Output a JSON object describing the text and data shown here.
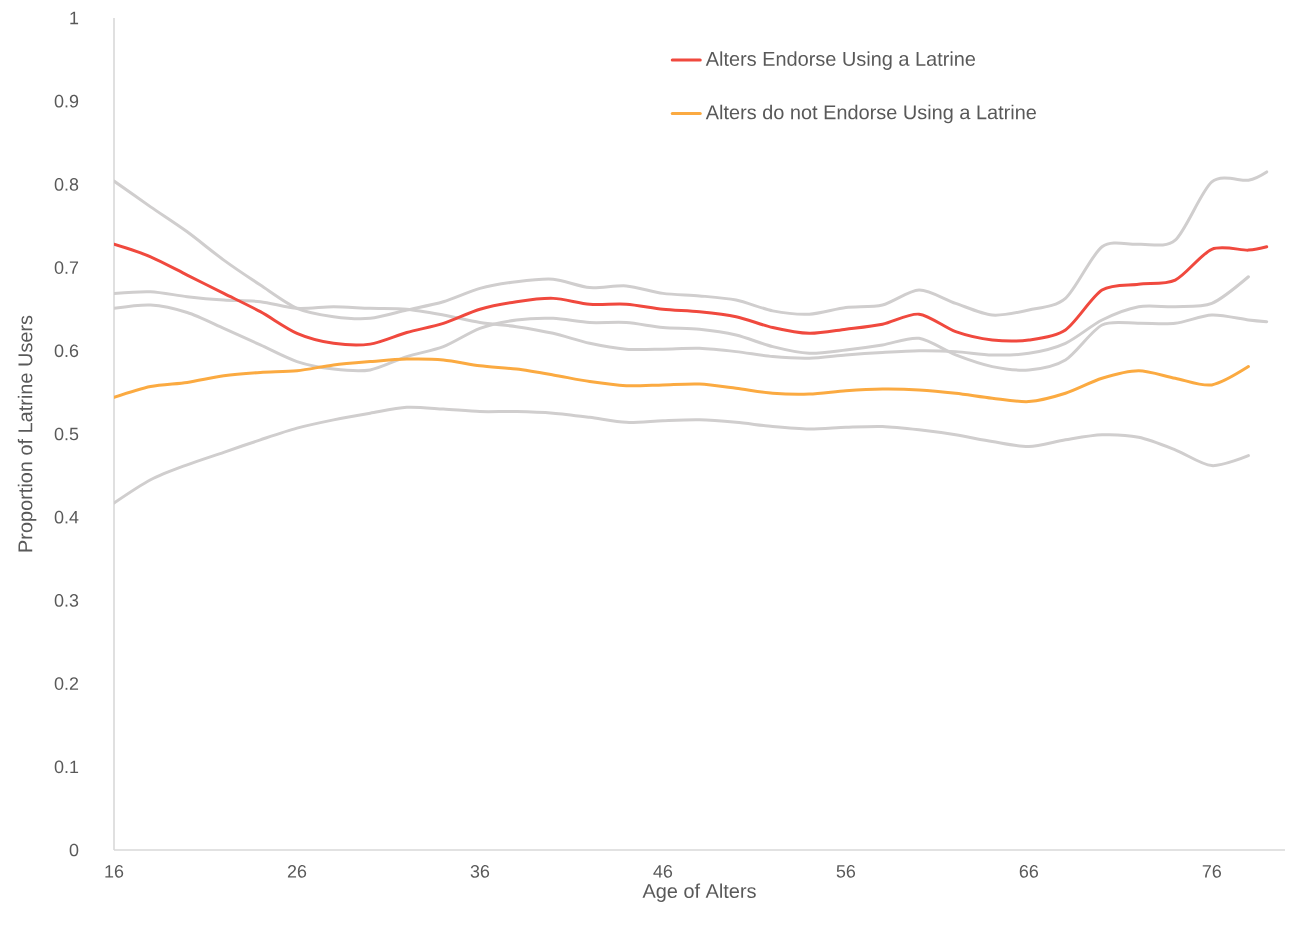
{
  "chart_data": {
    "type": "line",
    "xlabel": "Age of Alters",
    "ylabel": "Proportion of Latrine Users",
    "xlim": [
      16,
      80
    ],
    "xticks": [
      16,
      26,
      36,
      46,
      56,
      66,
      76
    ],
    "ylim": [
      0,
      1
    ],
    "yticks": [
      0,
      {
        "value": 0.1,
        "label": "0.1"
      },
      {
        "value": 0.2,
        "label": "0.2"
      },
      {
        "value": 0.3,
        "label": "0.3"
      },
      {
        "value": 0.4,
        "label": "0.4"
      },
      {
        "value": 0.5,
        "label": "0.5"
      },
      {
        "value": 0.6,
        "label": "0.6"
      },
      {
        "value": 0.7,
        "label": "0.7"
      },
      {
        "value": 0.8,
        "label": "0.8"
      },
      {
        "value": 0.9,
        "label": "0.9"
      },
      1
    ],
    "grid": false,
    "legend": "top right",
    "marker": "none",
    "line_style": "solid",
    "series": [
      {
        "color": "#d0cece",
        "x": [
          16,
          18,
          20,
          22,
          24,
          26,
          28,
          30,
          32,
          34,
          36,
          38,
          40,
          42,
          44,
          46,
          48,
          50,
          52,
          54,
          56,
          58,
          60,
          62,
          64,
          66,
          68,
          70,
          72,
          74,
          76,
          78,
          79
        ],
        "values": [
          0.804,
          0.773,
          0.743,
          0.709,
          0.679,
          0.651,
          0.641,
          0.639,
          0.649,
          0.659,
          0.675,
          0.683,
          0.686,
          0.676,
          0.678,
          0.669,
          0.666,
          0.661,
          0.648,
          0.644,
          0.652,
          0.655,
          0.673,
          0.657,
          0.643,
          0.649,
          0.663,
          0.725,
          0.728,
          0.733,
          0.803,
          0.805,
          0.815
        ]
      },
      {
        "color": "#d0cece",
        "x": [
          16,
          18,
          20,
          22,
          24,
          26,
          28,
          30,
          32,
          34,
          36,
          38,
          40,
          42,
          44,
          46,
          48,
          50,
          52,
          54,
          56,
          58,
          60,
          62,
          64,
          66,
          68,
          70,
          72,
          74,
          76,
          78,
          79
        ],
        "values": [
          0.651,
          0.655,
          0.646,
          0.627,
          0.607,
          0.587,
          0.578,
          0.577,
          0.593,
          0.605,
          0.627,
          0.637,
          0.639,
          0.634,
          0.634,
          0.628,
          0.626,
          0.619,
          0.605,
          0.597,
          0.601,
          0.607,
          0.615,
          0.595,
          0.581,
          0.577,
          0.589,
          0.631,
          0.633,
          0.633,
          0.643,
          0.637,
          0.635
        ]
      },
      {
        "color": "#d0cece",
        "x": [
          16,
          18,
          20,
          22,
          24,
          26,
          28,
          30,
          32,
          34,
          36,
          38,
          40,
          42,
          44,
          46,
          48,
          50,
          52,
          54,
          56,
          58,
          60,
          62,
          64,
          66,
          68,
          70,
          72,
          74,
          76,
          78
        ],
        "values": [
          0.669,
          0.671,
          0.665,
          0.661,
          0.659,
          0.651,
          0.653,
          0.651,
          0.65,
          0.643,
          0.634,
          0.629,
          0.621,
          0.609,
          0.602,
          0.602,
          0.603,
          0.599,
          0.593,
          0.591,
          0.595,
          0.598,
          0.6,
          0.599,
          0.595,
          0.597,
          0.609,
          0.637,
          0.653,
          0.653,
          0.657,
          0.689
        ]
      },
      {
        "color": "#d0cece",
        "x": [
          16,
          18,
          20,
          22,
          24,
          26,
          28,
          30,
          32,
          34,
          36,
          38,
          40,
          42,
          44,
          46,
          48,
          50,
          52,
          54,
          56,
          58,
          60,
          62,
          64,
          66,
          68,
          70,
          72,
          74,
          76,
          78
        ],
        "values": [
          0.417,
          0.445,
          0.463,
          0.478,
          0.493,
          0.507,
          0.517,
          0.525,
          0.532,
          0.53,
          0.527,
          0.527,
          0.525,
          0.52,
          0.514,
          0.516,
          0.517,
          0.514,
          0.509,
          0.506,
          0.508,
          0.509,
          0.505,
          0.499,
          0.491,
          0.485,
          0.493,
          0.499,
          0.496,
          0.481,
          0.462,
          0.474
        ]
      },
      {
        "name": "Alters Endorse Using a Latrine",
        "color": "#f0493e",
        "x": [
          16,
          18,
          20,
          22,
          24,
          26,
          28,
          30,
          32,
          34,
          36,
          38,
          40,
          42,
          44,
          46,
          48,
          50,
          52,
          54,
          56,
          58,
          60,
          62,
          64,
          66,
          68,
          70,
          72,
          74,
          76,
          78,
          79
        ],
        "values": [
          0.728,
          0.713,
          0.691,
          0.669,
          0.647,
          0.621,
          0.609,
          0.608,
          0.622,
          0.633,
          0.65,
          0.659,
          0.663,
          0.656,
          0.656,
          0.65,
          0.647,
          0.641,
          0.628,
          0.621,
          0.626,
          0.632,
          0.644,
          0.623,
          0.613,
          0.613,
          0.625,
          0.673,
          0.68,
          0.685,
          0.722,
          0.721,
          0.725
        ]
      },
      {
        "name": "Alters do not Endorse Using a Latrine",
        "color": "#fbaa41",
        "x": [
          16,
          18,
          20,
          22,
          24,
          26,
          28,
          30,
          32,
          34,
          36,
          38,
          40,
          42,
          44,
          46,
          48,
          50,
          52,
          54,
          56,
          58,
          60,
          62,
          64,
          66,
          68,
          70,
          72,
          74,
          76,
          78
        ],
        "values": [
          0.544,
          0.557,
          0.562,
          0.57,
          0.574,
          0.576,
          0.583,
          0.587,
          0.59,
          0.589,
          0.582,
          0.578,
          0.571,
          0.563,
          0.558,
          0.559,
          0.56,
          0.555,
          0.549,
          0.548,
          0.552,
          0.554,
          0.553,
          0.549,
          0.543,
          0.539,
          0.549,
          0.567,
          0.576,
          0.567,
          0.559,
          0.581
        ]
      }
    ]
  }
}
